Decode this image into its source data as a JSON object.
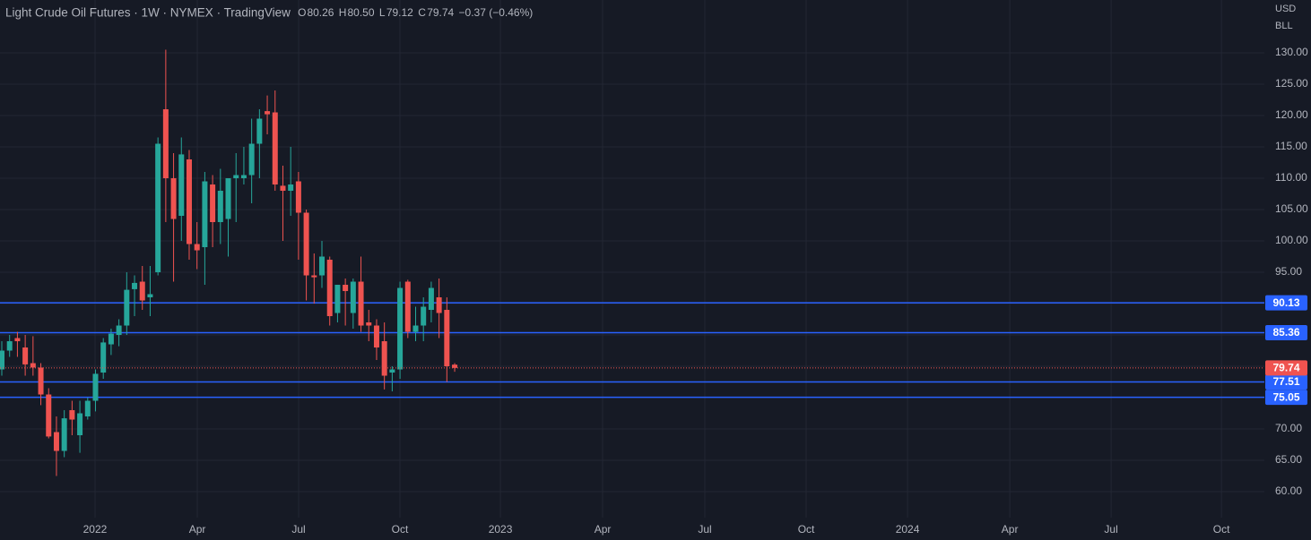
{
  "chart_data": {
    "type": "candlestick",
    "title": "Light Crude Oil Futures · 1W · NYMEX · TradingView",
    "ohlc_legend": [
      {
        "label": "O",
        "value": "80.26"
      },
      {
        "label": "H",
        "value": "80.50"
      },
      {
        "label": "L",
        "value": "79.12"
      },
      {
        "label": "C",
        "value": "79.74"
      }
    ],
    "change": "−0.37 (−0.46%)",
    "currency": "USD",
    "unit": "BLL",
    "x": [
      0,
      1,
      2,
      3,
      4,
      5,
      6,
      7,
      8,
      9,
      10,
      11,
      12,
      13,
      14,
      15,
      16,
      17,
      18,
      19,
      20,
      21,
      22,
      23,
      24,
      25,
      26,
      27,
      28,
      29,
      30,
      31,
      32,
      33,
      34,
      35,
      36,
      37,
      38,
      39,
      40,
      41,
      42,
      43,
      44,
      45,
      46,
      47,
      48,
      49,
      50,
      51,
      52,
      53,
      54,
      55,
      56,
      57,
      58
    ],
    "open": [
      79.5,
      82.5,
      84.5,
      83,
      80.5,
      79.8,
      75.5,
      69.5,
      66.5,
      73,
      69,
      72,
      74.5,
      79,
      83.5,
      85,
      86.5,
      92.3,
      93.5,
      91,
      95,
      121,
      110,
      104,
      113,
      99.5,
      99,
      109,
      103,
      103.5,
      110,
      110,
      110.5,
      115.5,
      120.7,
      120.5,
      108.8,
      108,
      109.5,
      104.5,
      94.5,
      94.5,
      97,
      88.5,
      93,
      88.5,
      93.5,
      87,
      86.5,
      84,
      79,
      79.5,
      93.5,
      85.5,
      86.5,
      89,
      91,
      89,
      80.26
    ],
    "high": [
      84,
      85,
      85.5,
      85,
      84.8,
      80.5,
      76.5,
      72,
      73,
      74.5,
      74.5,
      75,
      79.5,
      84.5,
      86,
      87.5,
      95,
      94.5,
      96,
      96,
      116.5,
      130.5,
      114,
      116.5,
      114.5,
      103,
      111,
      110.5,
      111.5,
      110,
      114,
      115,
      119.5,
      121,
      123.2,
      124,
      112,
      115,
      111,
      105,
      98,
      100,
      97.5,
      93,
      94,
      94,
      97.5,
      89,
      87.5,
      87,
      80,
      93.5,
      93.8,
      89.5,
      91,
      93.5,
      94,
      91,
      80.5
    ],
    "low": [
      78.5,
      81.5,
      81.5,
      78.5,
      78.5,
      73.8,
      68.5,
      62.5,
      65.5,
      69,
      66.2,
      71.5,
      72.8,
      78,
      81.8,
      83.2,
      85,
      88,
      89,
      88,
      94.5,
      103,
      93.5,
      100,
      97,
      95.5,
      93,
      99,
      99.5,
      97.5,
      103,
      109,
      106,
      110,
      117,
      108,
      100,
      104,
      97,
      90.5,
      90,
      92.5,
      86.5,
      87,
      86.5,
      86,
      85.5,
      84,
      81,
      76.3,
      76,
      78,
      84.5,
      84,
      84,
      87,
      84.5,
      77.5,
      79.12
    ],
    "close": [
      82.5,
      84,
      84,
      80.3,
      79.8,
      75.5,
      68.8,
      66.5,
      71.7,
      71.5,
      72.5,
      74.5,
      78.8,
      83.8,
      85.2,
      86.5,
      92.2,
      93.3,
      90.5,
      91.5,
      115.5,
      110,
      103.5,
      113.8,
      99.5,
      98.5,
      109.5,
      103,
      108,
      110,
      110.5,
      110.5,
      115.5,
      119.5,
      120.2,
      109,
      108,
      109,
      104.5,
      94.5,
      94.2,
      97.5,
      88,
      93,
      92,
      93.5,
      86.5,
      86.5,
      83,
      78.5,
      79.5,
      92.5,
      85.5,
      86.5,
      89.5,
      92.5,
      88.5,
      80,
      79.74
    ],
    "up_color": "#26a69a",
    "down_color": "#ef5350",
    "xlim": [
      -0.23,
      161.7
    ],
    "xticks": [
      {
        "value": 11.94,
        "label": "2022"
      },
      {
        "value": 25.04,
        "label": "Apr"
      },
      {
        "value": 38.02,
        "label": "Jul"
      },
      {
        "value": 50.99,
        "label": "Oct"
      },
      {
        "value": 63.86,
        "label": "2023"
      },
      {
        "value": 76.95,
        "label": "Apr"
      },
      {
        "value": 90.04,
        "label": "Jul"
      },
      {
        "value": 103.02,
        "label": "Oct"
      },
      {
        "value": 116.0,
        "label": "2024"
      },
      {
        "value": 129.1,
        "label": "Apr"
      },
      {
        "value": 142.07,
        "label": "Jul"
      },
      {
        "value": 156.2,
        "label": "Oct"
      }
    ],
    "ylim": [
      55.86,
      138.43
    ],
    "yticks": [
      {
        "value": 60,
        "label": "60.00"
      },
      {
        "value": 65,
        "label": "65.00"
      },
      {
        "value": 70,
        "label": "70.00"
      },
      {
        "value": 75,
        "label": "75.00"
      },
      {
        "value": 80,
        "label": "80.00"
      },
      {
        "value": 85,
        "label": "85.00"
      },
      {
        "value": 90,
        "label": "90.00"
      },
      {
        "value": 95,
        "label": "95.00"
      },
      {
        "value": 100,
        "label": "100.00"
      },
      {
        "value": 105,
        "label": "105.00"
      },
      {
        "value": 110,
        "label": "110.00"
      },
      {
        "value": 115,
        "label": "115.00"
      },
      {
        "value": 120,
        "label": "120.00"
      },
      {
        "value": 125,
        "label": "125.00"
      },
      {
        "value": 130,
        "label": "130.00"
      }
    ],
    "grid": true,
    "levels": [
      90.13,
      85.36,
      77.51,
      75.05
    ],
    "level_color": "#2962ff"
  }
}
